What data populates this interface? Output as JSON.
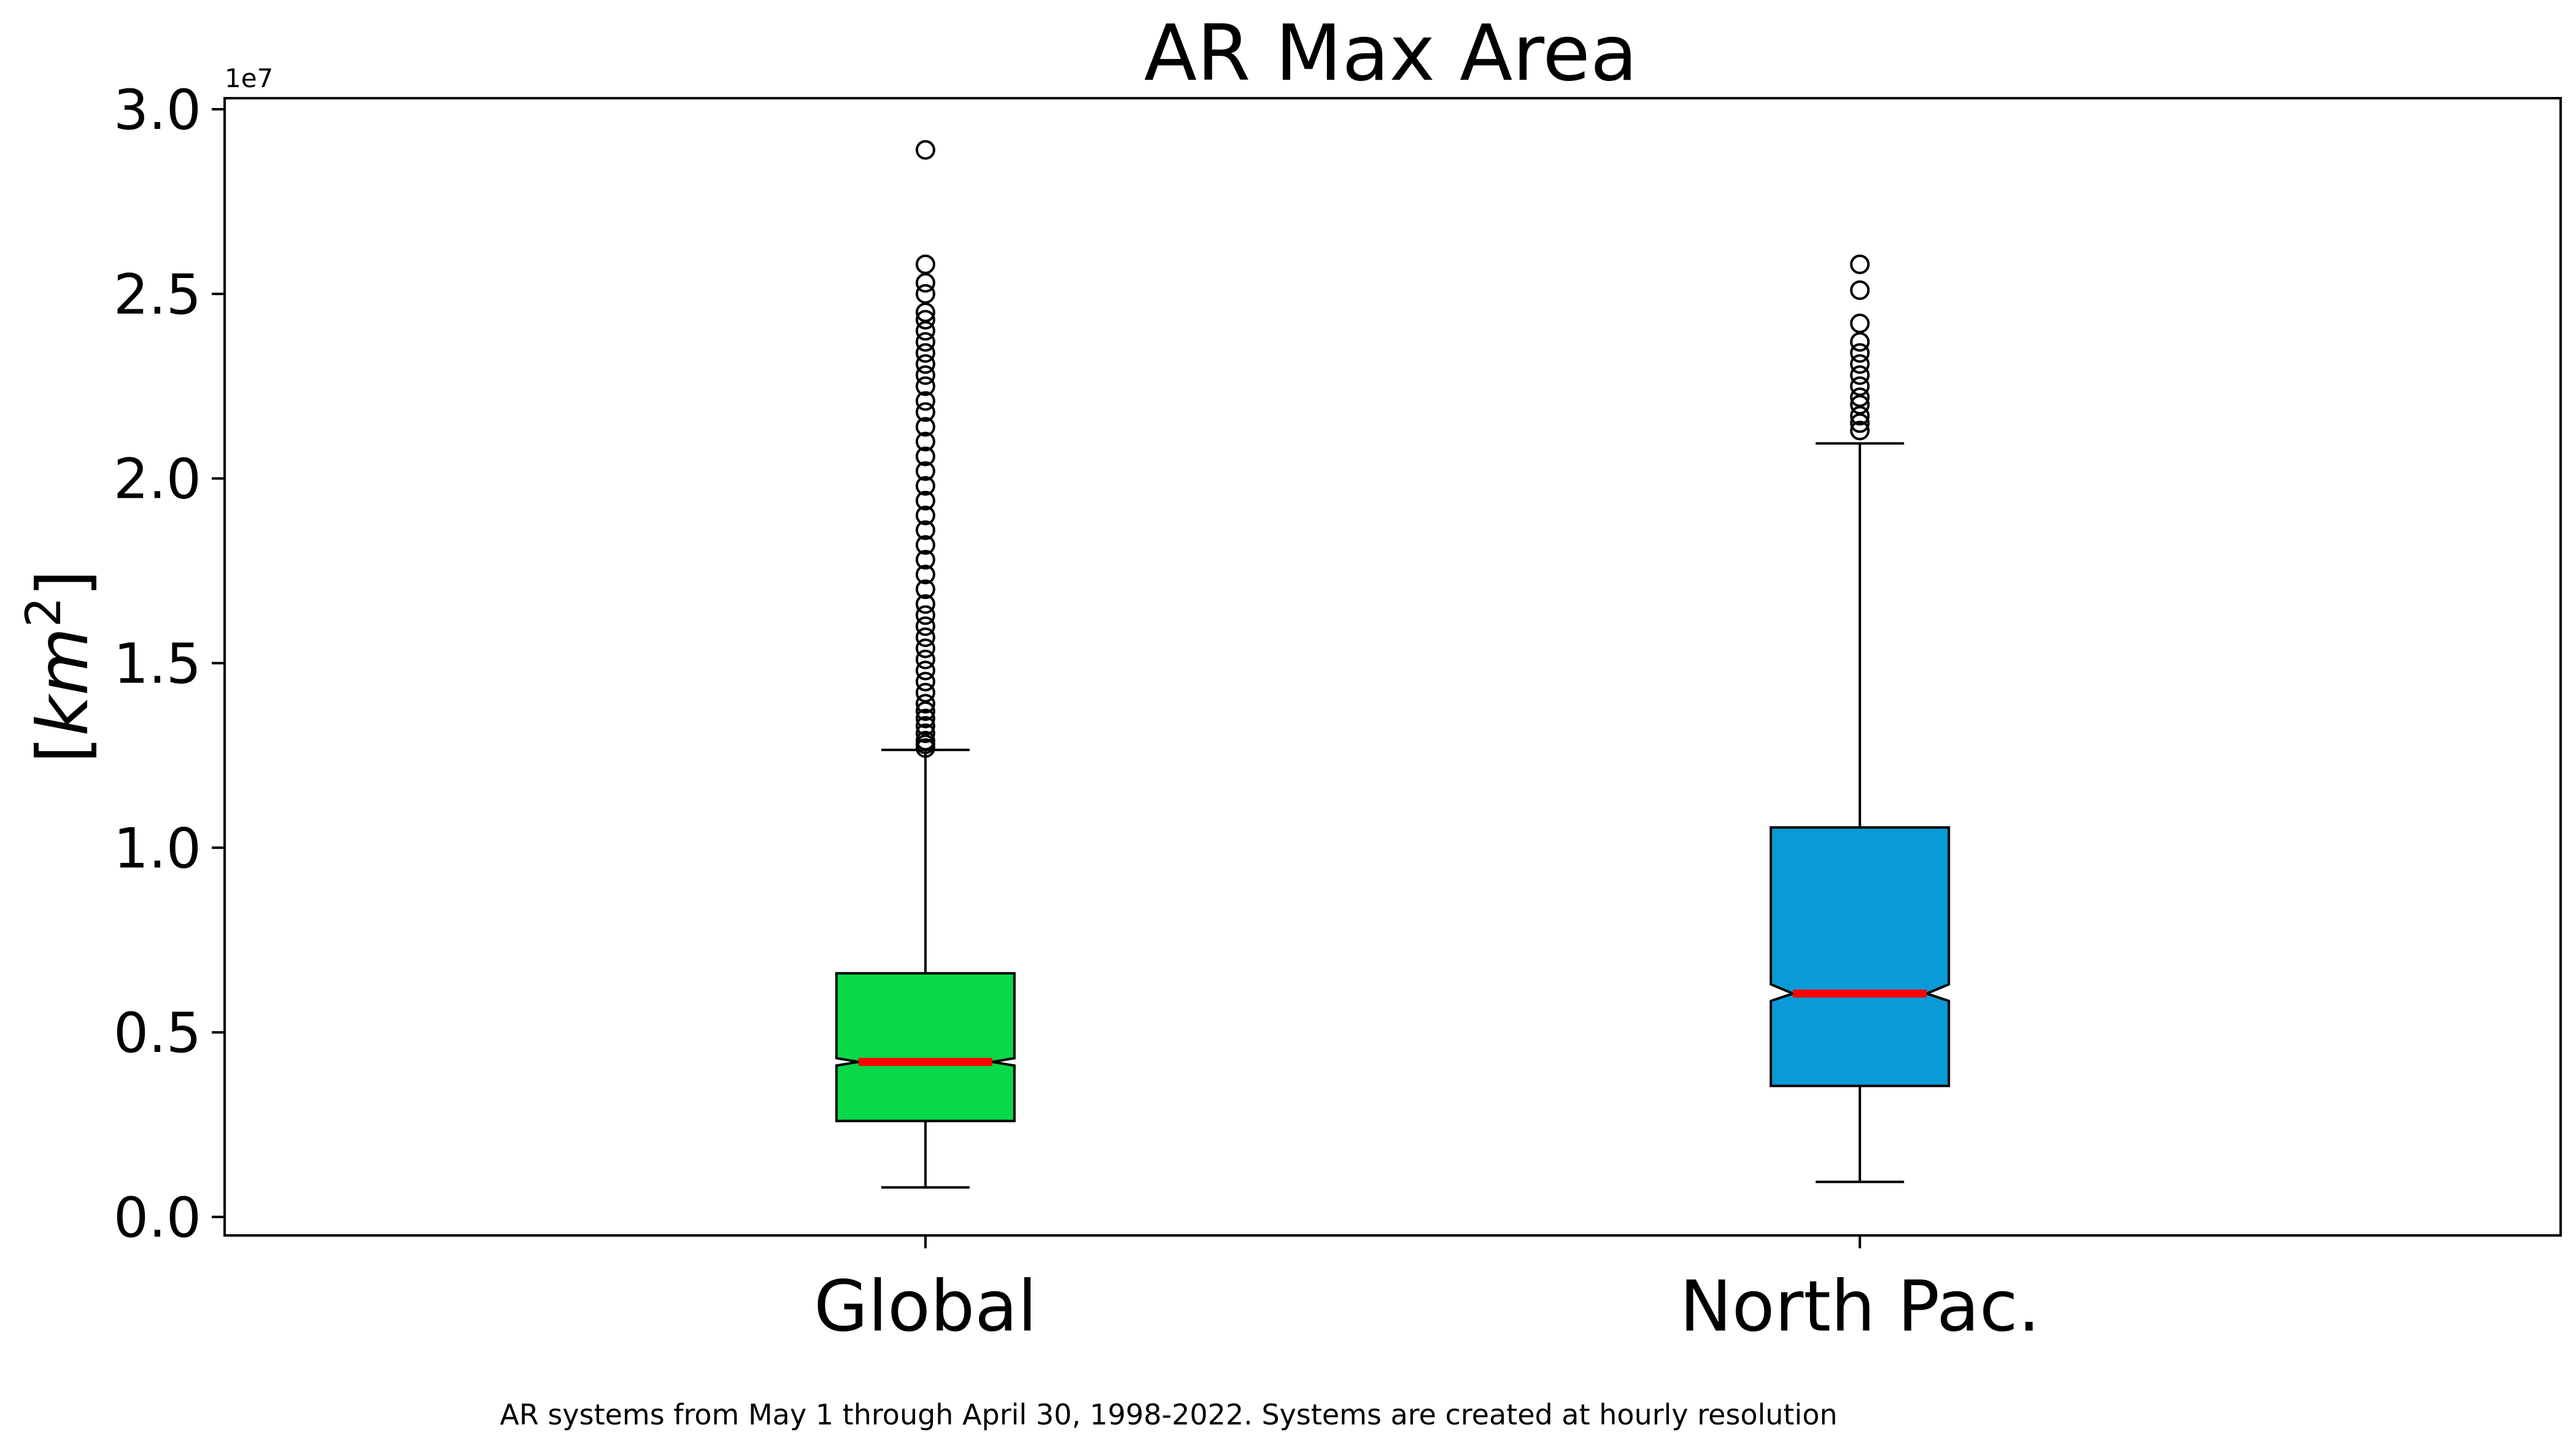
{
  "chart_data": {
    "type": "box",
    "title": "AR Max Area",
    "ylabel_base": "km",
    "ylabel_exponent": "2",
    "y_multiplier": "1e7",
    "y_tick_labels": [
      "0.0",
      "0.5",
      "1.0",
      "1.5",
      "2.0",
      "2.5",
      "3.0"
    ],
    "y_ticks": [
      0,
      0.5,
      1.0,
      1.5,
      2.0,
      2.5,
      3.0
    ],
    "ylim": [
      -0.05,
      3.03
    ],
    "categories": [
      "Global",
      "North Pac."
    ],
    "boxes": [
      {
        "name": "Global",
        "color": "#09d849",
        "whisker_low": 0.08,
        "q1": 0.26,
        "median": 0.42,
        "notch_low": 0.41,
        "notch_high": 0.43,
        "q3": 0.66,
        "whisker_high": 1.265,
        "outliers": [
          1.27,
          1.28,
          1.29,
          1.31,
          1.33,
          1.35,
          1.37,
          1.39,
          1.42,
          1.45,
          1.48,
          1.51,
          1.54,
          1.57,
          1.6,
          1.63,
          1.66,
          1.7,
          1.74,
          1.78,
          1.82,
          1.86,
          1.9,
          1.94,
          1.98,
          2.02,
          2.06,
          2.1,
          2.14,
          2.18,
          2.21,
          2.25,
          2.28,
          2.31,
          2.34,
          2.37,
          2.4,
          2.43,
          2.45,
          2.5,
          2.53,
          2.58,
          2.89
        ]
      },
      {
        "name": "North Pac.",
        "color": "#0a9bd6",
        "whisker_low": 0.095,
        "q1": 0.355,
        "median": 0.605,
        "notch_low": 0.585,
        "notch_high": 0.63,
        "q3": 1.055,
        "whisker_high": 2.095,
        "outliers": [
          2.13,
          2.15,
          2.17,
          2.2,
          2.22,
          2.25,
          2.28,
          2.31,
          2.34,
          2.37,
          2.42,
          2.51,
          2.58
        ]
      }
    ],
    "median_color": "#ff0000",
    "grid": false,
    "legend": "none"
  },
  "caption": "AR systems from May 1 through April 30, 1998-2022. Systems are created at hourly resolution"
}
